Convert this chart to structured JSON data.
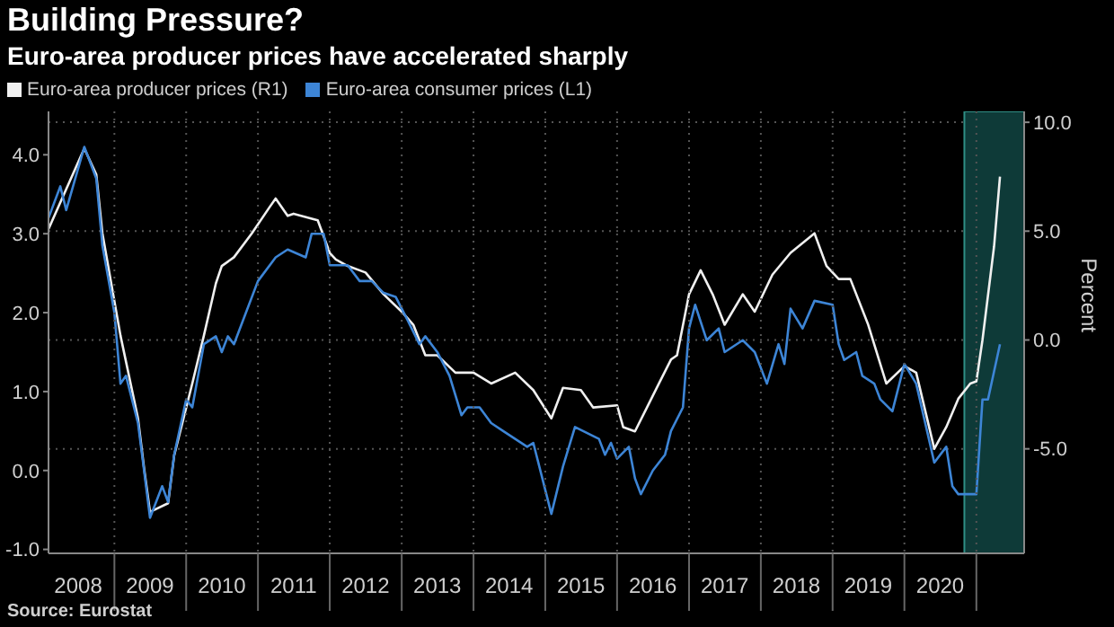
{
  "chart_data": {
    "type": "line",
    "title": "Building Pressure?",
    "subtitle": "Euro-area producer prices have accelerated sharply",
    "y2label": "Percent",
    "annotations": [
      "Source: Eurostat"
    ],
    "xlim": [
      "2008-02",
      "2021-09"
    ],
    "xticks": [
      {
        "value": "2008-07",
        "label": "2008"
      },
      {
        "value": "2009-01",
        "label": null
      },
      {
        "value": "2009-07",
        "label": "2009"
      },
      {
        "value": "2010-01",
        "label": null
      },
      {
        "value": "2010-07",
        "label": "2010"
      },
      {
        "value": "2011-01",
        "label": null
      },
      {
        "value": "2011-07",
        "label": "2011"
      },
      {
        "value": "2012-01",
        "label": null
      },
      {
        "value": "2012-07",
        "label": "2012"
      },
      {
        "value": "2013-01",
        "label": null
      },
      {
        "value": "2013-07",
        "label": "2013"
      },
      {
        "value": "2014-01",
        "label": null
      },
      {
        "value": "2014-07",
        "label": "2014"
      },
      {
        "value": "2015-01",
        "label": null
      },
      {
        "value": "2015-07",
        "label": "2015"
      },
      {
        "value": "2016-01",
        "label": null
      },
      {
        "value": "2016-07",
        "label": "2016"
      },
      {
        "value": "2017-01",
        "label": null
      },
      {
        "value": "2017-07",
        "label": "2017"
      },
      {
        "value": "2018-01",
        "label": null
      },
      {
        "value": "2018-07",
        "label": "2018"
      },
      {
        "value": "2019-01",
        "label": null
      },
      {
        "value": "2019-07",
        "label": "2019"
      },
      {
        "value": "2020-01",
        "label": null
      },
      {
        "value": "2020-07",
        "label": "2020"
      },
      {
        "value": "2021-01",
        "label": null
      }
    ],
    "ylim": [
      -1.05,
      4.55
    ],
    "yticks": [
      {
        "value": -1,
        "label": "-1.0"
      },
      {
        "value": 0,
        "label": "0.0"
      },
      {
        "value": 1,
        "label": "1.0"
      },
      {
        "value": 2,
        "label": "2.0"
      },
      {
        "value": 3,
        "label": "3.0"
      },
      {
        "value": 4,
        "label": "4.0"
      }
    ],
    "y2lim": [
      -9.8,
      10.5
    ],
    "y2ticks": [
      {
        "value": -5,
        "label": "-5.0"
      },
      {
        "value": 0,
        "label": "0.0"
      },
      {
        "value": 5,
        "label": "5.0"
      },
      {
        "value": 10,
        "label": "10.0"
      }
    ],
    "grid": true,
    "legend": "top left",
    "marker": "none",
    "bands": [
      {
        "axis": "x",
        "from": "2020-11",
        "to": "2021-09",
        "color": "#0e3a38"
      }
    ],
    "series": [
      {
        "name": "Euro-area producer prices (R1)",
        "color": "#f0f0f0",
        "axis": "y2",
        "x": [
          "2008-02",
          "2008-08",
          "2008-10",
          "2008-11",
          "2009-02",
          "2009-05",
          "2009-06",
          "2009-07",
          "2009-10",
          "2009-11",
          "2010-02",
          "2010-04",
          "2010-06",
          "2010-07",
          "2010-09",
          "2010-12",
          "2011-03",
          "2011-04",
          "2011-06",
          "2011-07",
          "2011-11",
          "2012-01",
          "2012-02",
          "2012-04",
          "2012-07",
          "2012-10",
          "2013-01",
          "2013-03",
          "2013-05",
          "2013-07",
          "2013-10",
          "2014-01",
          "2014-04",
          "2014-08",
          "2014-11",
          "2015-02",
          "2015-04",
          "2015-07",
          "2015-09",
          "2016-01",
          "2016-02",
          "2016-04",
          "2016-06",
          "2016-08",
          "2016-10",
          "2016-11",
          "2017-01",
          "2017-03",
          "2017-05",
          "2017-07",
          "2017-10",
          "2017-12",
          "2018-03",
          "2018-06",
          "2018-10",
          "2018-12",
          "2019-02",
          "2019-04",
          "2019-07",
          "2019-10",
          "2020-01",
          "2020-03",
          "2020-06",
          "2020-08",
          "2020-10",
          "2020-12",
          "2021-01",
          "2021-02",
          "2021-04",
          "2021-05"
        ],
        "values": [
          5.1,
          8.8,
          7.6,
          4.9,
          0.2,
          -3.6,
          -5.9,
          -7.9,
          -7.5,
          -5.3,
          -2.0,
          0.2,
          2.6,
          3.4,
          3.8,
          4.9,
          6.1,
          6.5,
          5.7,
          5.8,
          5.5,
          4.0,
          3.7,
          3.4,
          3.1,
          2.1,
          1.3,
          0.7,
          -0.7,
          -0.7,
          -1.5,
          -1.5,
          -2.0,
          -1.5,
          -2.3,
          -3.6,
          -2.2,
          -2.3,
          -3.1,
          -3.0,
          -4.0,
          -4.2,
          -3.1,
          -2.0,
          -0.9,
          -0.7,
          2.1,
          3.2,
          2.1,
          0.7,
          2.1,
          1.3,
          3.0,
          4.0,
          4.9,
          3.4,
          2.8,
          2.8,
          0.7,
          -2.0,
          -1.2,
          -1.5,
          -5.0,
          -4.0,
          -2.7,
          -2.0,
          -1.9,
          0.0,
          4.3,
          7.5
        ]
      },
      {
        "name": "Euro-area consumer prices (L1)",
        "color": "#3d85d6",
        "x": [
          "2008-02",
          "2008-04",
          "2008-05",
          "2008-08",
          "2008-10",
          "2008-11",
          "2009-01",
          "2009-02",
          "2009-03",
          "2009-05",
          "2009-06",
          "2009-07",
          "2009-09",
          "2009-10",
          "2009-11",
          "2010-01",
          "2010-02",
          "2010-04",
          "2010-06",
          "2010-07",
          "2010-08",
          "2010-09",
          "2010-11",
          "2011-01",
          "2011-04",
          "2011-06",
          "2011-09",
          "2011-10",
          "2011-12",
          "2012-01",
          "2012-04",
          "2012-06",
          "2012-08",
          "2012-10",
          "2012-12",
          "2013-02",
          "2013-04",
          "2013-05",
          "2013-07",
          "2013-09",
          "2013-11",
          "2013-12",
          "2014-02",
          "2014-04",
          "2014-06",
          "2014-08",
          "2014-10",
          "2014-11",
          "2015-02",
          "2015-04",
          "2015-06",
          "2015-10",
          "2015-11",
          "2015-12",
          "2016-01",
          "2016-03",
          "2016-04",
          "2016-05",
          "2016-07",
          "2016-09",
          "2016-10",
          "2016-12",
          "2017-01",
          "2017-02",
          "2017-04",
          "2017-06",
          "2017-07",
          "2017-10",
          "2017-12",
          "2018-02",
          "2018-04",
          "2018-05",
          "2018-06",
          "2018-08",
          "2018-10",
          "2019-01",
          "2019-02",
          "2019-03",
          "2019-05",
          "2019-06",
          "2019-08",
          "2019-09",
          "2019-11",
          "2020-01",
          "2020-03",
          "2020-06",
          "2020-08",
          "2020-09",
          "2020-10",
          "2021-01",
          "2021-02",
          "2021-03",
          "2021-05"
        ],
        "values": [
          3.2,
          3.6,
          3.3,
          4.1,
          3.7,
          2.85,
          2.0,
          1.1,
          1.2,
          0.6,
          0.0,
          -0.6,
          -0.2,
          -0.4,
          0.2,
          0.9,
          0.8,
          1.6,
          1.7,
          1.5,
          1.7,
          1.6,
          2.0,
          2.4,
          2.7,
          2.8,
          2.7,
          3.0,
          3.0,
          2.6,
          2.6,
          2.4,
          2.4,
          2.25,
          2.2,
          1.9,
          1.6,
          1.7,
          1.5,
          1.2,
          0.7,
          0.8,
          0.8,
          0.6,
          0.5,
          0.4,
          0.3,
          0.35,
          -0.55,
          0.05,
          0.55,
          0.4,
          0.2,
          0.35,
          0.15,
          0.3,
          -0.1,
          -0.3,
          0.0,
          0.2,
          0.5,
          0.8,
          1.8,
          2.1,
          1.65,
          1.8,
          1.5,
          1.65,
          1.5,
          1.1,
          1.6,
          1.35,
          2.05,
          1.8,
          2.15,
          2.1,
          1.6,
          1.4,
          1.5,
          1.2,
          1.1,
          0.9,
          0.75,
          1.35,
          1.1,
          0.1,
          0.3,
          -0.2,
          -0.3,
          -0.3,
          0.9,
          0.9,
          1.6
        ]
      }
    ]
  }
}
